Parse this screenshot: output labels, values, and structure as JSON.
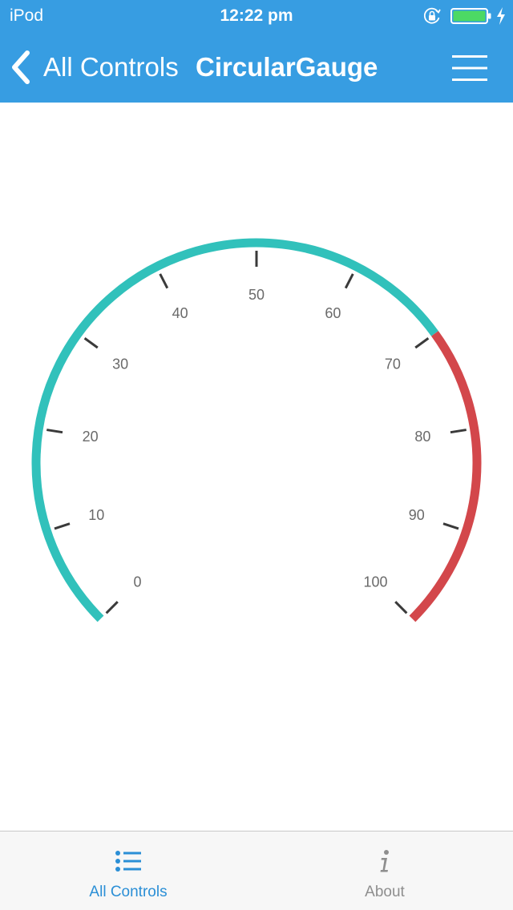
{
  "status_bar": {
    "carrier": "iPod",
    "time": "12:22 pm",
    "icons": [
      "orientation-lock-icon",
      "battery-icon",
      "charging-bolt-icon"
    ],
    "battery_level": 1.0,
    "battery_color": "#4cd964"
  },
  "nav": {
    "back_label": "All Controls",
    "title": "CircularGauge",
    "icons": [
      "chevron-left-icon",
      "hamburger-menu-icon"
    ],
    "background": "#379de2"
  },
  "gauge": {
    "min": 0,
    "max": 100,
    "major_interval": 10,
    "labels": [
      "0",
      "10",
      "20",
      "30",
      "40",
      "50",
      "60",
      "70",
      "80",
      "90",
      "100"
    ],
    "ranges": [
      {
        "start": 0,
        "end": 70,
        "color": "#31c1bb"
      },
      {
        "start": 70,
        "end": 100,
        "color": "#d3474b"
      }
    ],
    "tick_color": "#3a3a3a",
    "label_color": "#6a6a6a"
  },
  "tabs": [
    {
      "label": "All Controls",
      "icon": "list-icon",
      "active": true
    },
    {
      "label": "About",
      "icon": "info-icon",
      "active": false
    }
  ],
  "colors": {
    "active_tab": "#2b8fd6",
    "inactive_tab": "#8e8e8e"
  }
}
